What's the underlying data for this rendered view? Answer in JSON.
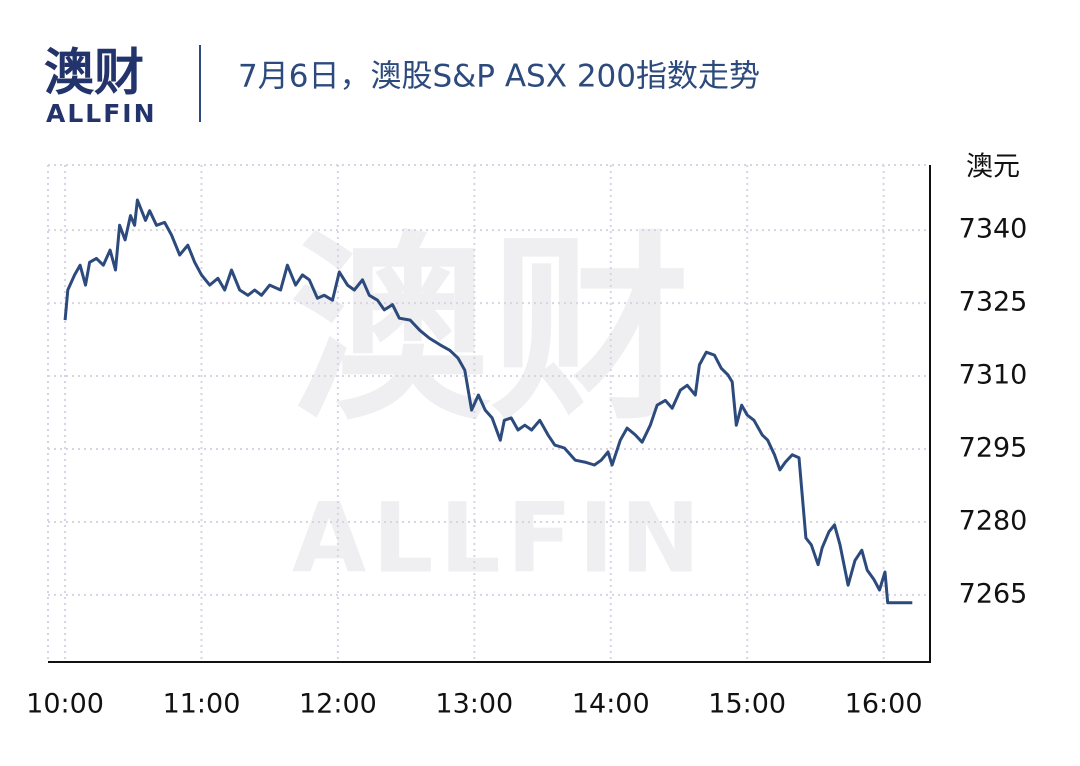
{
  "logo": {
    "name": "澳财",
    "sub": "ALLFIN"
  },
  "watermark": {
    "top": "澳财",
    "bottom": "ALLFIN"
  },
  "chart_data": {
    "type": "line",
    "title": "7月6日，澳股S&P ASX 200指数走势",
    "y_label": "澳元",
    "y_axis_position": "right",
    "color": "#2c4a7c",
    "grid": true,
    "x": [
      10.0,
      10.02,
      10.07,
      10.11,
      10.15,
      10.18,
      10.23,
      10.28,
      10.33,
      10.37,
      10.4,
      10.44,
      10.48,
      10.51,
      10.53,
      10.59,
      10.62,
      10.67,
      10.73,
      10.78,
      10.84,
      10.9,
      10.95,
      11.0,
      11.06,
      11.12,
      11.17,
      11.22,
      11.28,
      11.34,
      11.39,
      11.44,
      11.5,
      11.58,
      11.63,
      11.69,
      11.74,
      11.79,
      11.85,
      11.9,
      11.96,
      12.01,
      12.07,
      12.12,
      12.18,
      12.23,
      12.29,
      12.34,
      12.4,
      12.45,
      12.53,
      12.6,
      12.67,
      12.75,
      12.82,
      12.88,
      12.93,
      12.98,
      13.03,
      13.08,
      13.13,
      13.19,
      13.22,
      13.27,
      13.32,
      13.37,
      13.42,
      13.48,
      13.54,
      13.59,
      13.66,
      13.74,
      13.81,
      13.88,
      13.93,
      13.98,
      14.01,
      14.07,
      14.12,
      14.18,
      14.23,
      14.29,
      14.34,
      14.4,
      14.45,
      14.51,
      14.56,
      14.62,
      14.65,
      14.7,
      14.76,
      14.81,
      14.86,
      14.89,
      14.92,
      14.96,
      15.0,
      15.05,
      15.11,
      15.15,
      15.2,
      15.24,
      15.28,
      15.33,
      15.38,
      15.43,
      15.47,
      15.52,
      15.55,
      15.6,
      15.64,
      15.68,
      15.74,
      15.79,
      15.84,
      15.88,
      15.93,
      15.97,
      16.01,
      16.03,
      16.21
    ],
    "values": [
      7321.5,
      7327.7,
      7330.8,
      7332.8,
      7328.7,
      7333.4,
      7334.2,
      7332.8,
      7335.9,
      7331.8,
      7341.0,
      7338.0,
      7343.0,
      7341.0,
      7346.2,
      7342.0,
      7344.0,
      7341.0,
      7341.6,
      7339.0,
      7334.9,
      7336.9,
      7333.4,
      7330.8,
      7328.7,
      7330.1,
      7327.7,
      7331.8,
      7327.7,
      7326.6,
      7327.7,
      7326.6,
      7328.7,
      7327.7,
      7332.8,
      7328.7,
      7330.8,
      7329.8,
      7326.0,
      7326.6,
      7325.6,
      7331.4,
      7328.7,
      7327.7,
      7329.8,
      7326.6,
      7325.6,
      7323.6,
      7324.7,
      7321.9,
      7321.5,
      7319.4,
      7317.8,
      7316.4,
      7315.3,
      7313.7,
      7311.2,
      7303.0,
      7306.1,
      7303.0,
      7301.4,
      7296.8,
      7300.9,
      7301.4,
      7298.9,
      7299.9,
      7298.9,
      7300.9,
      7297.9,
      7295.8,
      7295.2,
      7292.7,
      7292.3,
      7291.7,
      7292.7,
      7294.4,
      7291.7,
      7296.8,
      7299.3,
      7297.9,
      7296.4,
      7299.9,
      7304.0,
      7305.0,
      7303.4,
      7307.1,
      7308.1,
      7306.1,
      7312.3,
      7314.9,
      7314.3,
      7311.6,
      7310.2,
      7308.8,
      7299.9,
      7304.0,
      7302.0,
      7300.9,
      7297.9,
      7296.8,
      7293.8,
      7290.7,
      7292.3,
      7293.8,
      7293.2,
      7276.7,
      7275.3,
      7271.2,
      7274.7,
      7278.0,
      7279.4,
      7275.3,
      7267.0,
      7272.1,
      7274.2,
      7270.1,
      7268.1,
      7266.0,
      7269.7,
      7263.4,
      7263.4
    ],
    "xlim": [
      9.875,
      16.34
    ],
    "xticks": [
      {
        "value": 10,
        "label": "10:00"
      },
      {
        "value": 11,
        "label": "11:00"
      },
      {
        "value": 12,
        "label": "12:00"
      },
      {
        "value": 13,
        "label": "13:00"
      },
      {
        "value": 14,
        "label": "14:00"
      },
      {
        "value": 15,
        "label": "15:00"
      },
      {
        "value": 16,
        "label": "16:00"
      }
    ],
    "ylim": [
      7251.2,
      7353.4
    ],
    "yticks": [
      7265,
      7280,
      7295,
      7310,
      7325,
      7340
    ]
  }
}
